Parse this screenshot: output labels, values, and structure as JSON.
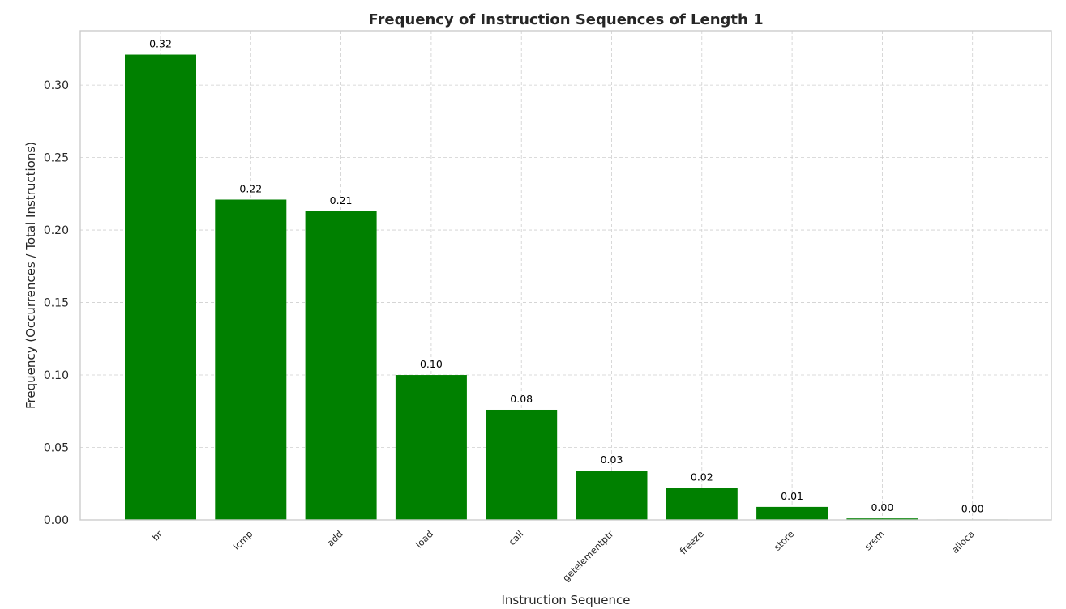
{
  "chart_data": {
    "type": "bar",
    "title": "Frequency of Instruction Sequences of Length 1",
    "xlabel": "Instruction Sequence",
    "ylabel": "Frequency (Occurrences / Total Instructions)",
    "categories": [
      "br",
      "icmp",
      "add",
      "load",
      "call",
      "getelementptr",
      "freeze",
      "store",
      "srem",
      "alloca"
    ],
    "values": [
      0.321,
      0.221,
      0.213,
      0.1,
      0.076,
      0.034,
      0.022,
      0.009,
      0.001,
      0.0003
    ],
    "data_labels": [
      "0.32",
      "0.22",
      "0.21",
      "0.10",
      "0.08",
      "0.03",
      "0.02",
      "0.01",
      "0.00",
      "0.00"
    ],
    "ylim": [
      0,
      0.3375
    ],
    "yticks": [
      0.0,
      0.05,
      0.1,
      0.15,
      0.2,
      0.25,
      0.3
    ],
    "ytick_labels": [
      "0.00",
      "0.05",
      "0.10",
      "0.15",
      "0.20",
      "0.25",
      "0.30"
    ],
    "grid": true,
    "bar_color": "#008000"
  }
}
